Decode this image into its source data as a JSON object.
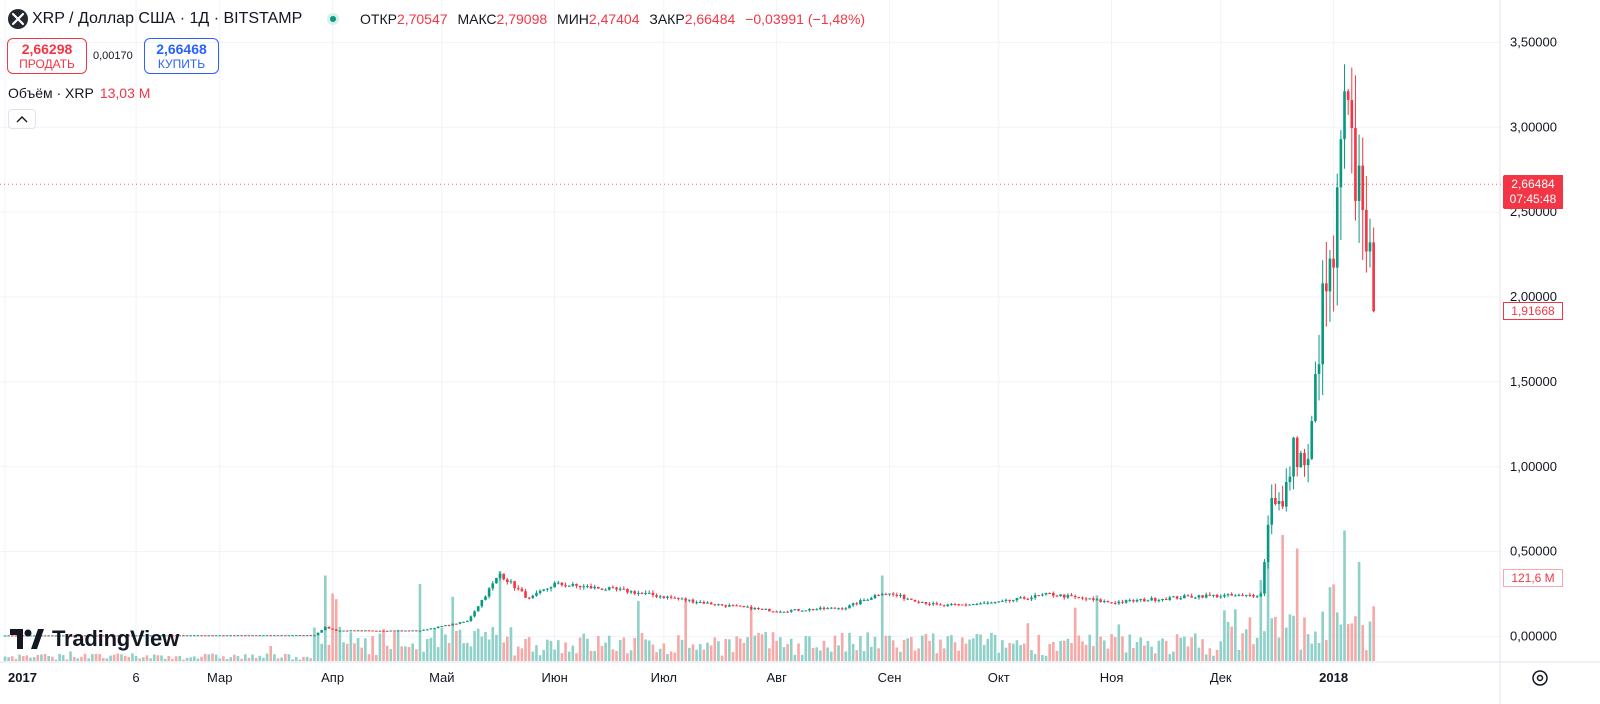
{
  "header": {
    "symbol_title": "XRP / Доллар США · 1Д · BITSTAMP",
    "open_label": "ОТКР",
    "open": "2,70547",
    "high_label": "МАКС",
    "high": "2,79098",
    "low_label": "МИН",
    "low": "2,47404",
    "close_label": "ЗАКР",
    "close": "2,66484",
    "change": "−0,03991 (−1,48%)"
  },
  "trade": {
    "sell_price": "2,66298",
    "sell_label": "ПРОДАТЬ",
    "spread": "0,00170",
    "buy_price": "2,66468",
    "buy_label": "КУПИТЬ"
  },
  "volume_legend": {
    "label": "Объём · XRP",
    "value": "13,03 M"
  },
  "price_tags": {
    "last_price": "2,66484",
    "countdown": "07:45:48",
    "secondary": "1,91668",
    "volume": "121,6 M"
  },
  "brand": {
    "logo_text": "TradingView"
  },
  "icons": {
    "symbol": "xrp-logo-icon",
    "collapse": "chevron-up-icon",
    "settings": "gear-icon"
  },
  "colors": {
    "up": "#089981",
    "down": "#f23645",
    "up_volume": "#8fd1c8",
    "down_volume": "#f7a9a7",
    "grid": "#f0f3fa",
    "buy": "#2962ff"
  },
  "chart_data": {
    "type": "candlestick",
    "title": "XRP / Доллар США · 1Д · BITSTAMP",
    "y_axis": {
      "ticks": [
        3.5,
        3.0,
        2.5,
        2.0,
        1.5,
        1.0,
        0.5,
        0.0
      ],
      "tick_labels": [
        "3,50000",
        "3,00000",
        "2,50000",
        "2,00000",
        "1,50000",
        "1,00000",
        "0,50000",
        "0,00000"
      ],
      "range": [
        -0.15,
        3.75
      ],
      "side": "right"
    },
    "x_axis": {
      "tick_labels": [
        "2017",
        "6",
        "Мар",
        "Апр",
        "Май",
        "Июн",
        "Июл",
        "Авг",
        "Сен",
        "Окт",
        "Ноя",
        "Дек",
        "2018"
      ]
    },
    "last_price": 2.66484,
    "secondary_price": 1.91668,
    "grid": true,
    "series": [
      {
        "name": "price",
        "anchors": [
          [
            "2017-01-01",
            0.0065
          ],
          [
            "2017-03-27",
            0.008
          ],
          [
            "2017-03-30",
            0.055
          ],
          [
            "2017-04-02",
            0.035
          ],
          [
            "2017-04-25",
            0.035
          ],
          [
            "2017-05-08",
            0.09
          ],
          [
            "2017-05-17",
            0.37
          ],
          [
            "2017-05-25",
            0.22
          ],
          [
            "2017-06-01",
            0.31
          ],
          [
            "2017-06-20",
            0.27
          ],
          [
            "2017-07-15",
            0.19
          ],
          [
            "2017-08-01",
            0.15
          ],
          [
            "2017-08-20",
            0.17
          ],
          [
            "2017-08-30",
            0.26
          ],
          [
            "2017-09-15",
            0.18
          ],
          [
            "2017-10-01",
            0.2
          ],
          [
            "2017-10-15",
            0.25
          ],
          [
            "2017-11-01",
            0.2
          ],
          [
            "2017-11-25",
            0.24
          ],
          [
            "2017-12-08",
            0.24
          ],
          [
            "2017-12-12",
            0.25
          ],
          [
            "2017-12-15",
            0.85
          ],
          [
            "2017-12-18",
            0.75
          ],
          [
            "2017-12-21",
            1.1
          ],
          [
            "2017-12-25",
            1.0
          ],
          [
            "2017-12-29",
            1.95
          ],
          [
            "2018-01-01",
            2.2
          ],
          [
            "2018-01-04",
            3.1
          ],
          [
            "2018-01-07",
            2.7
          ],
          [
            "2018-01-09",
            2.66
          ],
          [
            "2018-01-12",
            1.92
          ]
        ]
      },
      {
        "name": "volume",
        "unit": "M",
        "spikes": [
          [
            "2017-03-30",
            190
          ],
          [
            "2017-04-01",
            150
          ],
          [
            "2017-05-17",
            200
          ],
          [
            "2017-08-30",
            190
          ],
          [
            "2017-12-12",
            180
          ],
          [
            "2017-12-14",
            220
          ],
          [
            "2017-12-18",
            280
          ],
          [
            "2017-12-22",
            250
          ],
          [
            "2018-01-04",
            290
          ],
          [
            "2018-01-08",
            220
          ],
          [
            "2018-01-12",
            121.6
          ]
        ]
      }
    ]
  }
}
